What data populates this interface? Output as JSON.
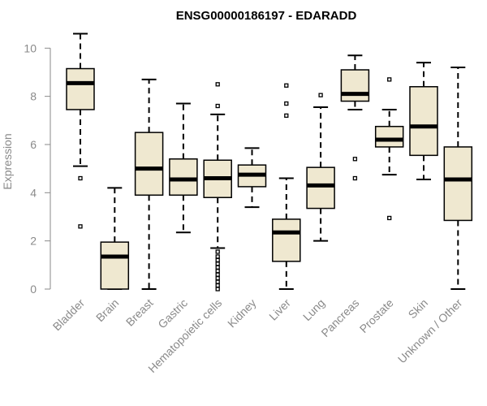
{
  "chart_data": {
    "type": "boxplot",
    "title": "ENSG00000186197 - EDARADD",
    "xlabel": "",
    "ylabel": "Expression",
    "ylim": [
      0,
      10.8
    ],
    "yticks": [
      0,
      2,
      4,
      6,
      8,
      10
    ],
    "grid": false,
    "colors": {
      "box_fill": "#efe8d0",
      "line": "#000000",
      "axis": "#8a8a8a"
    },
    "categories": [
      "Bladder",
      "Brain",
      "Breast",
      "Gastric",
      "Hematopoietic cells",
      "Kidney",
      "Liver",
      "Lung",
      "Pancreas",
      "Prostate",
      "Skin",
      "Unknown / Other"
    ],
    "boxes": [
      {
        "label": "Bladder",
        "whisker_low": 5.1,
        "q1": 7.45,
        "median": 8.55,
        "q3": 9.15,
        "whisker_high": 10.6,
        "outliers": [
          4.6,
          2.6
        ]
      },
      {
        "label": "Brain",
        "whisker_low": 0.0,
        "q1": 0.0,
        "median": 1.35,
        "q3": 1.95,
        "whisker_high": 4.2,
        "outliers": []
      },
      {
        "label": "Breast",
        "whisker_low": 0.0,
        "q1": 3.9,
        "median": 5.0,
        "q3": 6.5,
        "whisker_high": 8.7,
        "outliers": []
      },
      {
        "label": "Gastric",
        "whisker_low": 2.35,
        "q1": 3.9,
        "median": 4.55,
        "q3": 5.4,
        "whisker_high": 7.7,
        "outliers": []
      },
      {
        "label": "Hematopoietic cells",
        "whisker_low": 1.7,
        "q1": 3.8,
        "median": 4.6,
        "q3": 5.35,
        "whisker_high": 7.25,
        "outliers": [
          8.5,
          7.6,
          1.55,
          1.35,
          1.2,
          1.05,
          0.9,
          0.75,
          0.6,
          0.45,
          0.3,
          0.15,
          0.0
        ]
      },
      {
        "label": "Kidney",
        "whisker_low": 3.4,
        "q1": 4.25,
        "median": 4.75,
        "q3": 5.15,
        "whisker_high": 5.85,
        "outliers": []
      },
      {
        "label": "Liver",
        "whisker_low": 0.0,
        "q1": 1.15,
        "median": 2.35,
        "q3": 2.9,
        "whisker_high": 4.6,
        "outliers": [
          8.45,
          7.7,
          7.2
        ]
      },
      {
        "label": "Lung",
        "whisker_low": 2.0,
        "q1": 3.35,
        "median": 4.3,
        "q3": 5.05,
        "whisker_high": 7.55,
        "outliers": [
          8.05
        ]
      },
      {
        "label": "Pancreas",
        "whisker_low": 7.45,
        "q1": 7.8,
        "median": 8.1,
        "q3": 9.1,
        "whisker_high": 9.7,
        "outliers": [
          5.4,
          4.6
        ]
      },
      {
        "label": "Prostate",
        "whisker_low": 4.75,
        "q1": 5.9,
        "median": 6.2,
        "q3": 6.75,
        "whisker_high": 7.45,
        "outliers": [
          8.7,
          2.95
        ]
      },
      {
        "label": "Skin",
        "whisker_low": 4.55,
        "q1": 5.55,
        "median": 6.75,
        "q3": 8.4,
        "whisker_high": 9.4,
        "outliers": []
      },
      {
        "label": "Unknown / Other",
        "whisker_low": 0.0,
        "q1": 2.85,
        "median": 4.55,
        "q3": 5.9,
        "whisker_high": 9.2,
        "outliers": []
      }
    ]
  }
}
